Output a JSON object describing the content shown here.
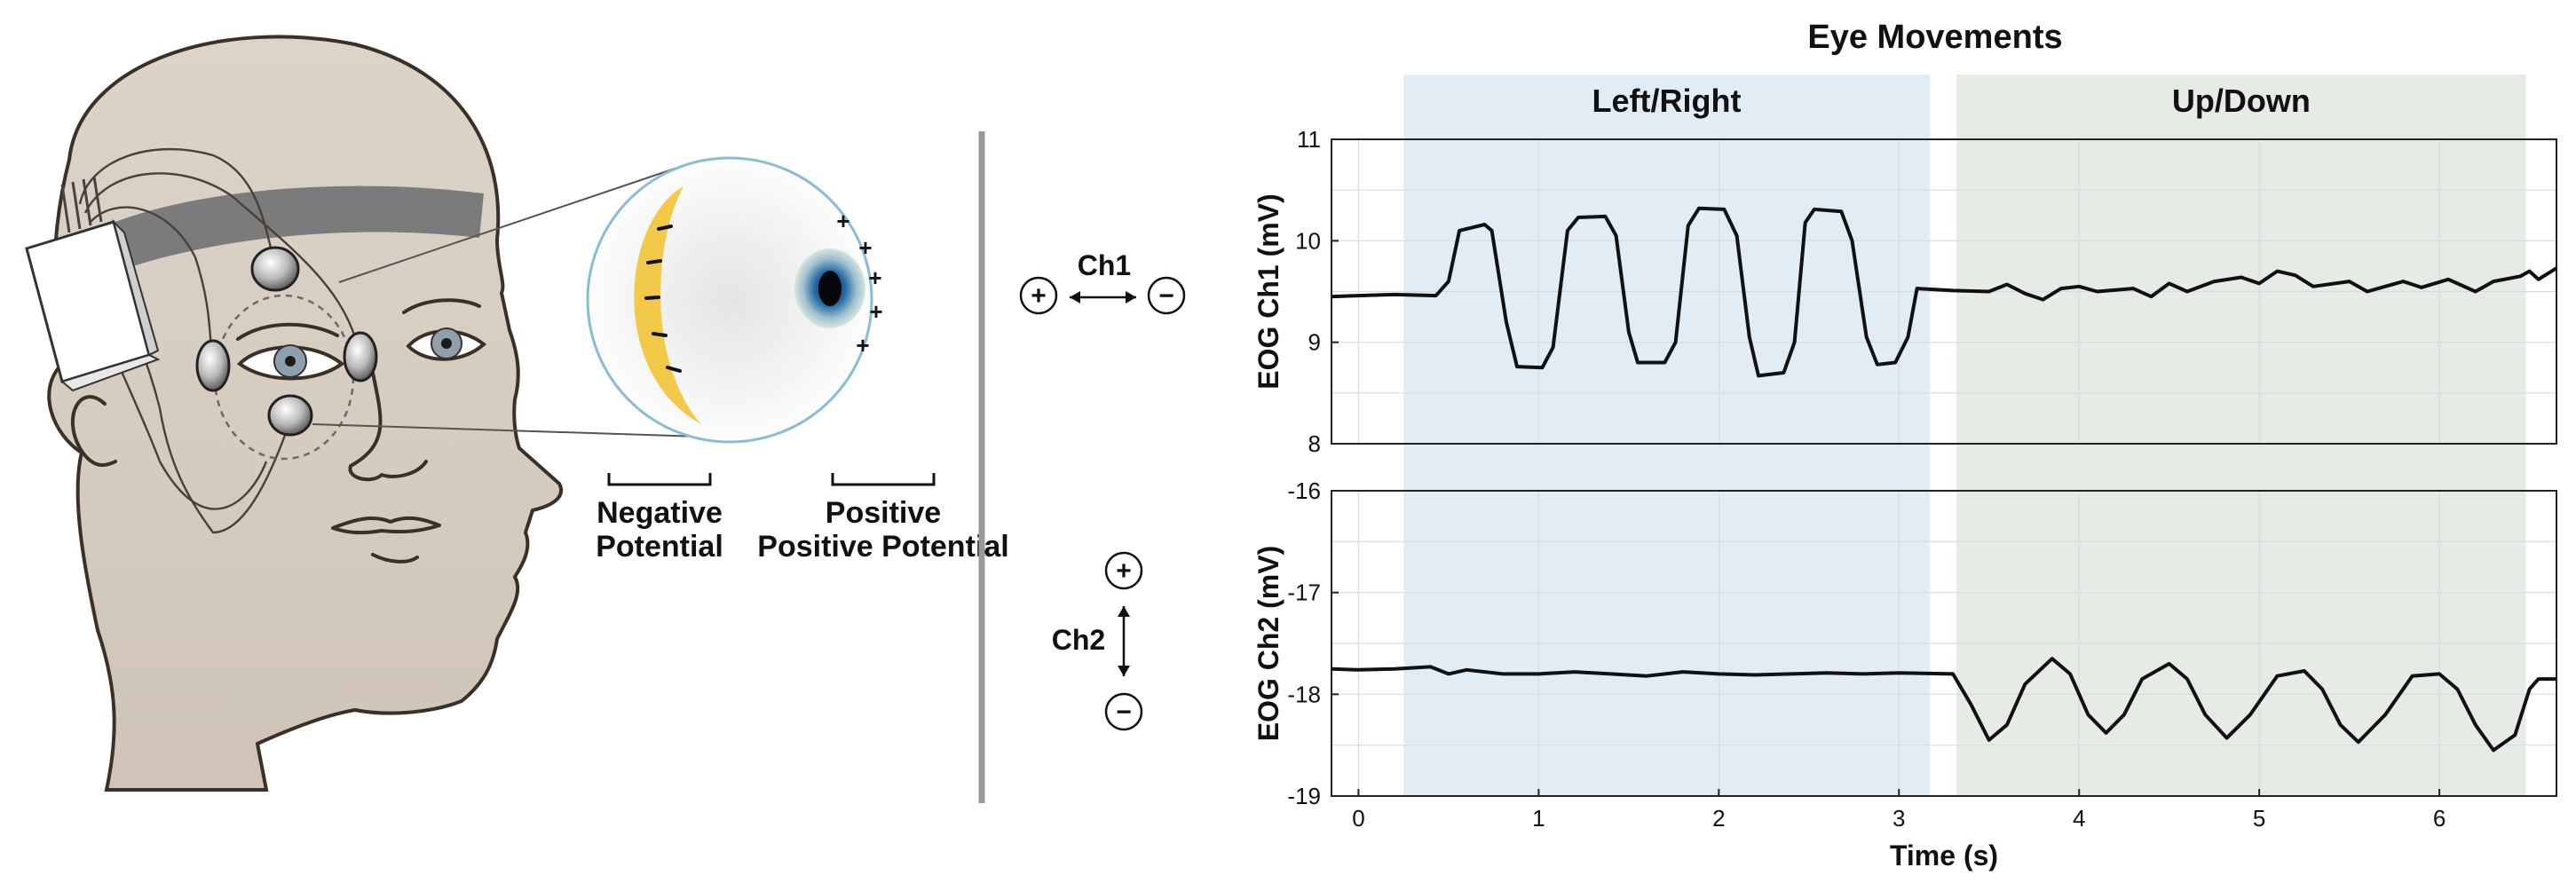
{
  "illustration": {
    "negative_label_1": "Negative",
    "negative_label_2": "Potential",
    "positive_label_1": "Positive",
    "positive_label_2": "Positive Potential",
    "plus": "+",
    "minus": "−",
    "ch1_label": "Ch1",
    "ch2_label": "Ch2",
    "colors": {
      "skin": "#dcd3c8",
      "headband": "#7b7b7b",
      "negative": "#f3c94a",
      "iris": "#2b6ea8"
    }
  },
  "chart_data": {
    "type": "line",
    "title": "Eye Movements",
    "xlabel": "Time (s)",
    "xlim": [
      -0.15,
      6.65
    ],
    "x_ticks": [
      0,
      1,
      2,
      3,
      4,
      5,
      6
    ],
    "regions": [
      {
        "label": "Left/Right",
        "x_start": 0.25,
        "x_end": 3.17,
        "color": "#e1ecf4"
      },
      {
        "label": "Up/Down",
        "x_start": 3.32,
        "x_end": 6.48,
        "color": "#e6ebe5"
      }
    ],
    "panels": [
      {
        "name": "ch1",
        "ylabel": "EOG Ch1 (mV)",
        "ylim": [
          8,
          11
        ],
        "y_ticks": [
          8,
          9,
          10,
          11
        ],
        "points": [
          [
            -0.15,
            9.45
          ],
          [
            0.0,
            9.46
          ],
          [
            0.2,
            9.47
          ],
          [
            0.43,
            9.46
          ],
          [
            0.5,
            9.6
          ],
          [
            0.56,
            10.1
          ],
          [
            0.7,
            10.16
          ],
          [
            0.74,
            10.1
          ],
          [
            0.82,
            9.2
          ],
          [
            0.88,
            8.76
          ],
          [
            1.02,
            8.75
          ],
          [
            1.08,
            8.95
          ],
          [
            1.16,
            10.1
          ],
          [
            1.22,
            10.23
          ],
          [
            1.37,
            10.24
          ],
          [
            1.43,
            10.05
          ],
          [
            1.5,
            9.1
          ],
          [
            1.55,
            8.8
          ],
          [
            1.7,
            8.8
          ],
          [
            1.76,
            9.0
          ],
          [
            1.83,
            10.15
          ],
          [
            1.89,
            10.32
          ],
          [
            2.03,
            10.31
          ],
          [
            2.1,
            10.05
          ],
          [
            2.17,
            9.05
          ],
          [
            2.22,
            8.67
          ],
          [
            2.36,
            8.7
          ],
          [
            2.42,
            9.0
          ],
          [
            2.48,
            10.18
          ],
          [
            2.53,
            10.31
          ],
          [
            2.68,
            10.29
          ],
          [
            2.74,
            10.0
          ],
          [
            2.82,
            9.05
          ],
          [
            2.88,
            8.78
          ],
          [
            2.98,
            8.8
          ],
          [
            3.05,
            9.05
          ],
          [
            3.1,
            9.53
          ],
          [
            3.3,
            9.51
          ],
          [
            3.5,
            9.5
          ],
          [
            3.6,
            9.57
          ],
          [
            3.7,
            9.48
          ],
          [
            3.8,
            9.42
          ],
          [
            3.9,
            9.53
          ],
          [
            4.0,
            9.55
          ],
          [
            4.1,
            9.5
          ],
          [
            4.3,
            9.53
          ],
          [
            4.4,
            9.45
          ],
          [
            4.5,
            9.58
          ],
          [
            4.6,
            9.5
          ],
          [
            4.75,
            9.6
          ],
          [
            4.9,
            9.64
          ],
          [
            5.0,
            9.58
          ],
          [
            5.1,
            9.7
          ],
          [
            5.2,
            9.66
          ],
          [
            5.3,
            9.55
          ],
          [
            5.5,
            9.6
          ],
          [
            5.6,
            9.5
          ],
          [
            5.8,
            9.6
          ],
          [
            5.9,
            9.54
          ],
          [
            6.05,
            9.62
          ],
          [
            6.2,
            9.5
          ],
          [
            6.3,
            9.6
          ],
          [
            6.45,
            9.65
          ],
          [
            6.5,
            9.7
          ],
          [
            6.55,
            9.62
          ],
          [
            6.65,
            9.73
          ]
        ]
      },
      {
        "name": "ch2",
        "ylabel": "EOG Ch2 (mV)",
        "ylim": [
          -19,
          -16
        ],
        "y_ticks": [
          -19,
          -18,
          -17,
          -16
        ],
        "points": [
          [
            -0.15,
            -17.75
          ],
          [
            0.0,
            -17.76
          ],
          [
            0.2,
            -17.75
          ],
          [
            0.4,
            -17.73
          ],
          [
            0.5,
            -17.8
          ],
          [
            0.6,
            -17.76
          ],
          [
            0.8,
            -17.8
          ],
          [
            1.0,
            -17.8
          ],
          [
            1.2,
            -17.78
          ],
          [
            1.4,
            -17.8
          ],
          [
            1.6,
            -17.82
          ],
          [
            1.8,
            -17.78
          ],
          [
            2.0,
            -17.8
          ],
          [
            2.2,
            -17.81
          ],
          [
            2.4,
            -17.8
          ],
          [
            2.6,
            -17.79
          ],
          [
            2.8,
            -17.8
          ],
          [
            3.0,
            -17.79
          ],
          [
            3.3,
            -17.8
          ],
          [
            3.4,
            -18.1
          ],
          [
            3.5,
            -18.45
          ],
          [
            3.6,
            -18.3
          ],
          [
            3.7,
            -17.9
          ],
          [
            3.85,
            -17.65
          ],
          [
            3.95,
            -17.8
          ],
          [
            4.05,
            -18.2
          ],
          [
            4.15,
            -18.38
          ],
          [
            4.25,
            -18.2
          ],
          [
            4.35,
            -17.85
          ],
          [
            4.5,
            -17.7
          ],
          [
            4.6,
            -17.85
          ],
          [
            4.7,
            -18.2
          ],
          [
            4.82,
            -18.43
          ],
          [
            4.95,
            -18.2
          ],
          [
            5.1,
            -17.82
          ],
          [
            5.25,
            -17.77
          ],
          [
            5.35,
            -17.95
          ],
          [
            5.45,
            -18.3
          ],
          [
            5.55,
            -18.47
          ],
          [
            5.7,
            -18.2
          ],
          [
            5.85,
            -17.82
          ],
          [
            6.0,
            -17.8
          ],
          [
            6.1,
            -17.95
          ],
          [
            6.2,
            -18.3
          ],
          [
            6.3,
            -18.55
          ],
          [
            6.42,
            -18.4
          ],
          [
            6.5,
            -17.95
          ],
          [
            6.55,
            -17.85
          ],
          [
            6.65,
            -17.85
          ]
        ]
      }
    ]
  }
}
